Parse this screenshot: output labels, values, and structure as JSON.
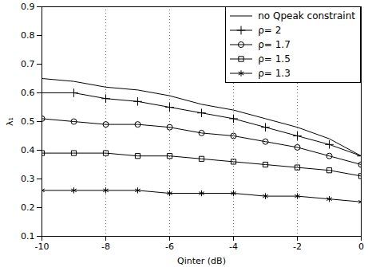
{
  "chart_data": {
    "type": "line",
    "x_label": "Qinter (dB)",
    "y_label": "λ₁",
    "x": [
      -10,
      -9,
      -8,
      -7,
      -6,
      -5,
      -4,
      -3,
      -2,
      -1,
      0
    ],
    "xlim": [
      -10,
      0
    ],
    "xticks": [
      -10,
      -8,
      -6,
      -4,
      -2,
      0
    ],
    "ylim": [
      0.1,
      0.9
    ],
    "yticks": [
      0.1,
      0.2,
      0.3,
      0.4,
      0.5,
      0.6,
      0.7,
      0.8,
      0.9
    ],
    "grid": "x",
    "legend": "top-right",
    "series": [
      {
        "name": "no Qpeak constraint",
        "color": "#000000",
        "marker": "none",
        "line_style": "solid",
        "values": [
          0.65,
          0.64,
          0.62,
          0.61,
          0.59,
          0.56,
          0.54,
          0.51,
          0.48,
          0.44,
          0.38
        ]
      },
      {
        "name": "ρ= 2",
        "color": "#000000",
        "marker": "plus",
        "line_style": "solid",
        "values": [
          0.6,
          0.6,
          0.58,
          0.57,
          0.55,
          0.53,
          0.51,
          0.48,
          0.45,
          0.42,
          0.38
        ]
      },
      {
        "name": "ρ= 1.7",
        "color": "#000000",
        "marker": "circle",
        "line_style": "solid",
        "values": [
          0.51,
          0.5,
          0.49,
          0.49,
          0.48,
          0.46,
          0.45,
          0.43,
          0.41,
          0.38,
          0.35
        ]
      },
      {
        "name": "ρ= 1.5",
        "color": "#000000",
        "marker": "square",
        "line_style": "solid",
        "values": [
          0.39,
          0.39,
          0.39,
          0.38,
          0.38,
          0.37,
          0.36,
          0.35,
          0.34,
          0.33,
          0.31
        ]
      },
      {
        "name": "ρ= 1.3",
        "color": "#000000",
        "marker": "asterisk",
        "line_style": "solid",
        "values": [
          0.26,
          0.26,
          0.26,
          0.26,
          0.25,
          0.25,
          0.25,
          0.24,
          0.24,
          0.23,
          0.22
        ]
      }
    ]
  }
}
